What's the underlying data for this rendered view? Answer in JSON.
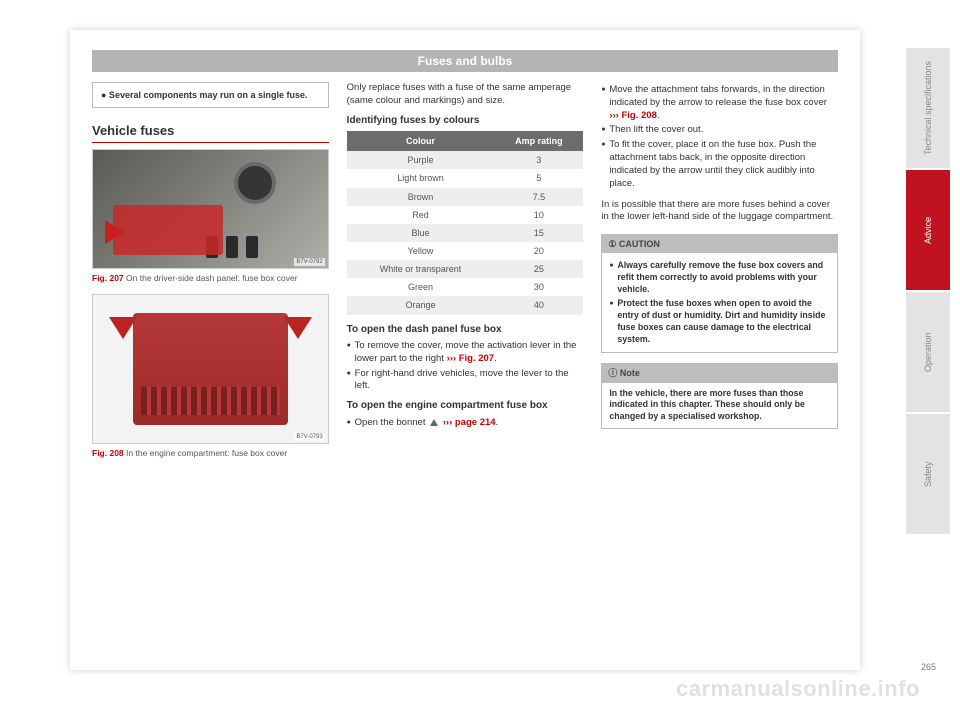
{
  "header": "Fuses and bulbs",
  "col1": {
    "infobox": "● Several components may run on a single fuse.",
    "section_heading": "Vehicle fuses",
    "fig207": {
      "code": "B7V-0792",
      "ref": "Fig. 207",
      "caption": "On the driver-side dash panel: fuse box cover"
    },
    "fig208": {
      "code": "B7V-0793",
      "ref": "Fig. 208",
      "caption": "In the engine compartment: fuse box cover"
    }
  },
  "col2": {
    "intro": "Only replace fuses with a fuse of the same amperage (same colour and markings) and size.",
    "table_heading": "Identifying fuses by colours",
    "table": {
      "headers": [
        "Colour",
        "Amp rating"
      ],
      "rows": [
        [
          "Purple",
          "3"
        ],
        [
          "Light brown",
          "5"
        ],
        [
          "Brown",
          "7.5"
        ],
        [
          "Red",
          "10"
        ],
        [
          "Blue",
          "15"
        ],
        [
          "Yellow",
          "20"
        ],
        [
          "White or transparent",
          "25"
        ],
        [
          "Green",
          "30"
        ],
        [
          "Orange",
          "40"
        ]
      ]
    },
    "sub1": "To open the dash panel fuse box",
    "b1": "To remove the cover, move the activation lever in the lower part to the right",
    "b1ref": "››› Fig. 207",
    "b2": "For right-hand drive vehicles, move the lever to the left.",
    "sub2": "To open the engine compartment fuse box",
    "b3a": "Open the bonnet",
    "b3b": "››› page 214",
    "b3dot": "."
  },
  "col3": {
    "b1a": "Move the attachment tabs forwards, in the direction indicated by the arrow to release the fuse box cover",
    "b1ref": "››› Fig. 208",
    "b1dot": ".",
    "b2": "Then lift the cover out.",
    "b3": "To fit the cover, place it on the fuse box. Push the attachment tabs back, in the opposite direction indicated by the arrow until they click audibly into place.",
    "para": "In is possible that there are more fuses behind a cover in the lower left-hand side of the luggage compartment.",
    "caution": {
      "title": "①  CAUTION",
      "b1": "Always carefully remove the fuse box covers and refit them correctly to avoid problems with your vehicle.",
      "b2": "Protect the fuse boxes when open to avoid the entry of dust or humidity. Dirt and humidity inside fuse boxes can cause damage to the electrical system."
    },
    "note": {
      "title": "ⓘ  Note",
      "body": "In the vehicle, there are more fuses than those indicated in this chapter. These should only be changed by a specialised workshop."
    }
  },
  "tabs": [
    "Technical specifications",
    "Advice",
    "Operation",
    "Safety"
  ],
  "page_number": "265",
  "watermark": "carmanualsonline.info"
}
